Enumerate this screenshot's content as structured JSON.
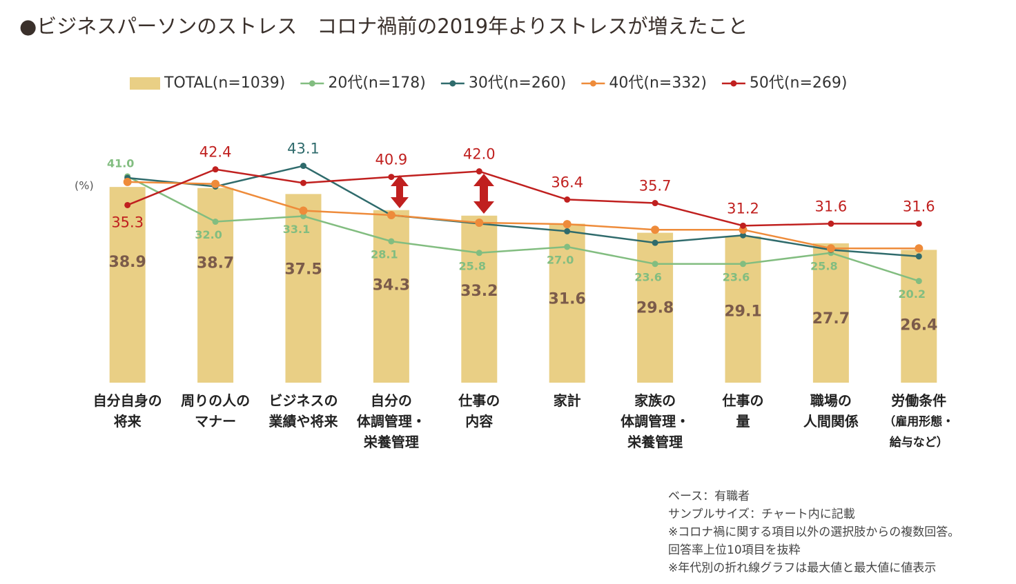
{
  "chart_data": {
    "type": "combo",
    "title": "●ビジネスパーソンのストレス　コロナ禍前の2019年よりストレスが増えたこと",
    "y_label": "(%)",
    "categories": [
      [
        "自分自身の",
        "将来"
      ],
      [
        "周りの人の",
        "マナー"
      ],
      [
        "ビジネスの",
        "業績や将来"
      ],
      [
        "自分の",
        "体調管理・",
        "栄養管理"
      ],
      [
        "仕事の",
        "内容"
      ],
      [
        "家計"
      ],
      [
        "家族の",
        "体調管理・",
        "栄養管理"
      ],
      [
        "仕事の",
        "量"
      ],
      [
        "職場の",
        "人間関係"
      ],
      [
        "労働条件",
        "（雇用形態・",
        "給与など）"
      ]
    ],
    "ylim": [
      0,
      54
    ],
    "series": [
      {
        "name": "TOTAL(n=1039)",
        "type": "bar",
        "color": "#e9cf85",
        "label_color": "#7b5b4a",
        "values": [
          38.9,
          38.7,
          37.5,
          34.3,
          33.2,
          31.6,
          29.8,
          29.1,
          27.7,
          26.4
        ]
      },
      {
        "name": "20代(n=178)",
        "type": "line",
        "color": "#82bd80",
        "values": [
          41.0,
          32.0,
          33.1,
          28.1,
          25.8,
          27.0,
          23.6,
          23.6,
          25.8,
          20.2
        ],
        "value_labels": [
          "41.0",
          "32.0",
          "33.1",
          "28.1",
          "25.8",
          "27.0",
          "23.6",
          "23.6",
          "25.8",
          "20.2"
        ]
      },
      {
        "name": "30代(n=260)",
        "type": "line",
        "color": "#2f6b6c",
        "values": [
          40.7,
          39.0,
          43.1,
          33.3,
          31.6,
          30.1,
          27.8,
          29.3,
          26.4,
          25.1
        ],
        "value_labels": [
          null,
          null,
          "43.1",
          null,
          null,
          null,
          null,
          null,
          null,
          null
        ]
      },
      {
        "name": "40代(n=332)",
        "type": "line",
        "color": "#ee8b3a",
        "values": [
          39.9,
          39.5,
          34.2,
          33.3,
          31.8,
          31.5,
          30.4,
          30.4,
          26.7,
          26.7
        ]
      },
      {
        "name": "50代(n=269)",
        "type": "line",
        "color": "#c0201f",
        "values": [
          35.3,
          42.4,
          39.7,
          40.9,
          42.0,
          36.4,
          35.7,
          31.2,
          31.6,
          31.6
        ],
        "value_labels": [
          "35.3",
          "42.4",
          null,
          "40.9",
          "42.0",
          "36.4",
          "35.7",
          "31.2",
          "31.6",
          "31.6"
        ]
      }
    ],
    "notes": [
      "ベース：有職者",
      "サンプルサイズ：チャート内に記載",
      "※コロナ禍に関する項目以外の選択肢からの複数回答。",
      "回答率上位10項目を抜粋",
      "※年代別の折れ線グラフは最大値と最大値に値表示"
    ]
  }
}
